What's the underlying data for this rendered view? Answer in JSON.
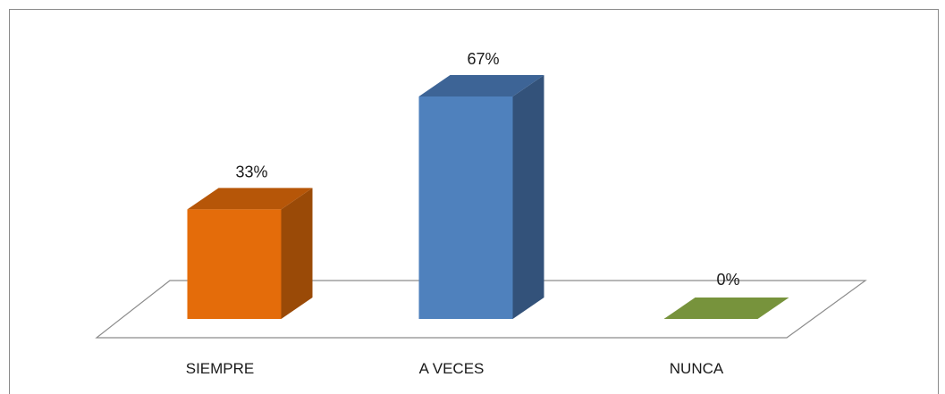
{
  "chart_data": {
    "type": "bar",
    "categories": [
      "SIEMPRE",
      "A VECES",
      "NUNCA"
    ],
    "values": [
      33,
      67,
      0
    ],
    "data_labels": [
      "33%",
      "67%",
      "0%"
    ],
    "title": "",
    "xlabel": "",
    "ylabel": "",
    "ylim": [
      0,
      70
    ],
    "grid": false,
    "legend": "none",
    "three_d": true,
    "colors": {
      "SIEMPRE": {
        "front": "#e46c0a",
        "top": "#b65608",
        "side": "#9a4a07"
      },
      "A VECES": {
        "front": "#4f81bd",
        "top": "#3d6496",
        "side": "#33527a"
      },
      "NUNCA": {
        "front": "#77933c",
        "top": "#77933c",
        "side": "#5e7530"
      }
    },
    "floor_color": "#ffffff",
    "floor_stroke": "#8c8c8c",
    "frame_color": "#8a8a8a"
  }
}
